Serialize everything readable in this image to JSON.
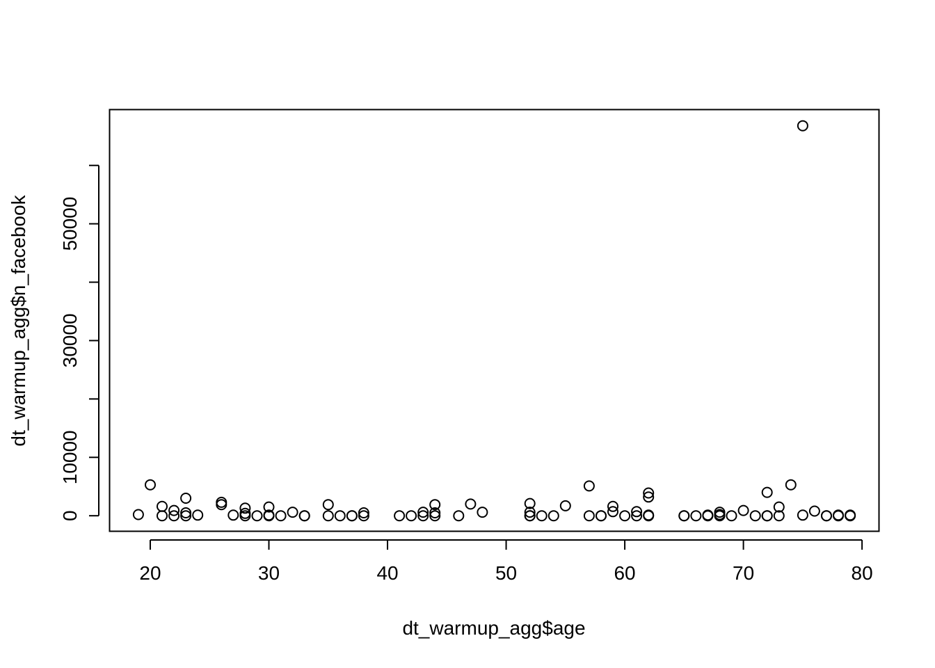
{
  "chart_data": {
    "type": "scatter",
    "title": "",
    "xlabel": "dt_warmup_agg$age",
    "ylabel": "dt_warmup_agg$n_facebook",
    "xlim": [
      16.6,
      81.4
    ],
    "ylim": [
      -2600,
      69500
    ],
    "x_ticks": [
      20,
      30,
      40,
      50,
      60,
      70,
      80
    ],
    "x_tick_labels": [
      "20",
      "30",
      "40",
      "50",
      "60",
      "70",
      "80"
    ],
    "y_ticks": [
      0,
      10000,
      20000,
      30000,
      40000,
      50000,
      60000
    ],
    "y_tick_labels": [
      "0",
      "10000",
      "",
      "30000",
      "",
      "50000",
      ""
    ],
    "grid": false,
    "legend": "none",
    "marker": "open-circle",
    "colors": {
      "points": "#000000",
      "axes": "#000000",
      "background": "#ffffff"
    },
    "points": [
      [
        19,
        200
      ],
      [
        20,
        5300
      ],
      [
        21,
        1600
      ],
      [
        21,
        0
      ],
      [
        22,
        0
      ],
      [
        22,
        900
      ],
      [
        23,
        500
      ],
      [
        23,
        0
      ],
      [
        23,
        3000
      ],
      [
        24,
        100
      ],
      [
        26,
        2300
      ],
      [
        26,
        1900
      ],
      [
        27,
        100
      ],
      [
        28,
        1300
      ],
      [
        28,
        400
      ],
      [
        28,
        0
      ],
      [
        29,
        0
      ],
      [
        30,
        1500
      ],
      [
        30,
        0
      ],
      [
        30,
        100
      ],
      [
        31,
        0
      ],
      [
        32,
        600
      ],
      [
        33,
        0
      ],
      [
        33,
        0
      ],
      [
        35,
        1900
      ],
      [
        35,
        0
      ],
      [
        36,
        0
      ],
      [
        37,
        0
      ],
      [
        37,
        0
      ],
      [
        38,
        0
      ],
      [
        38,
        500
      ],
      [
        41,
        0
      ],
      [
        42,
        0
      ],
      [
        43,
        600
      ],
      [
        43,
        0
      ],
      [
        44,
        1900
      ],
      [
        44,
        500
      ],
      [
        44,
        0
      ],
      [
        46,
        0
      ],
      [
        47,
        2000
      ],
      [
        48,
        600
      ],
      [
        52,
        2100
      ],
      [
        52,
        600
      ],
      [
        52,
        0
      ],
      [
        52,
        0
      ],
      [
        53,
        0
      ],
      [
        54,
        0
      ],
      [
        55,
        1700
      ],
      [
        57,
        5100
      ],
      [
        57,
        0
      ],
      [
        58,
        0
      ],
      [
        58,
        0
      ],
      [
        59,
        1600
      ],
      [
        59,
        700
      ],
      [
        60,
        0
      ],
      [
        61,
        0
      ],
      [
        61,
        700
      ],
      [
        62,
        3900
      ],
      [
        62,
        3200
      ],
      [
        62,
        100
      ],
      [
        62,
        0
      ],
      [
        65,
        0
      ],
      [
        65,
        0
      ],
      [
        66,
        0
      ],
      [
        67,
        0
      ],
      [
        67,
        100
      ],
      [
        68,
        600
      ],
      [
        68,
        200
      ],
      [
        68,
        0
      ],
      [
        69,
        0
      ],
      [
        70,
        900
      ],
      [
        71,
        0
      ],
      [
        72,
        4000
      ],
      [
        72,
        0
      ],
      [
        72,
        0
      ],
      [
        73,
        1500
      ],
      [
        73,
        0
      ],
      [
        74,
        5300
      ],
      [
        75,
        66800
      ],
      [
        75,
        100
      ],
      [
        76,
        800
      ],
      [
        77,
        0
      ],
      [
        77,
        0
      ],
      [
        78,
        0
      ],
      [
        78,
        100
      ],
      [
        79,
        0
      ],
      [
        79,
        100
      ]
    ]
  }
}
